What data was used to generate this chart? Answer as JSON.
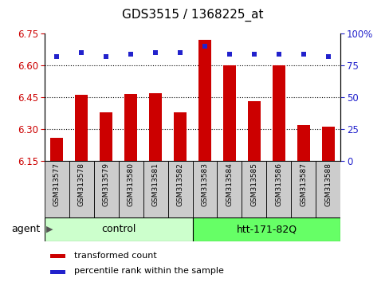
{
  "title": "GDS3515 / 1368225_at",
  "samples": [
    "GSM313577",
    "GSM313578",
    "GSM313579",
    "GSM313580",
    "GSM313581",
    "GSM313582",
    "GSM313583",
    "GSM313584",
    "GSM313585",
    "GSM313586",
    "GSM313587",
    "GSM313588"
  ],
  "transformed_counts": [
    6.26,
    6.46,
    6.38,
    6.465,
    6.47,
    6.38,
    6.72,
    6.6,
    6.43,
    6.6,
    6.32,
    6.31
  ],
  "percentile_ranks": [
    82,
    85,
    82,
    84,
    85,
    85,
    90,
    84,
    84,
    84,
    84,
    82
  ],
  "groups": [
    "control",
    "control",
    "control",
    "control",
    "control",
    "control",
    "htt-171-82Q",
    "htt-171-82Q",
    "htt-171-82Q",
    "htt-171-82Q",
    "htt-171-82Q",
    "htt-171-82Q"
  ],
  "ylim_left": [
    6.15,
    6.75
  ],
  "ylim_right": [
    0,
    100
  ],
  "yticks_left": [
    6.15,
    6.3,
    6.45,
    6.6,
    6.75
  ],
  "yticks_right": [
    0,
    25,
    50,
    75,
    100
  ],
  "gridlines": [
    6.3,
    6.45,
    6.6
  ],
  "bar_color": "#CC0000",
  "dot_color": "#2222CC",
  "bar_width": 0.5,
  "agent_label": "agent",
  "tick_color_left": "#CC0000",
  "tick_color_right": "#2222CC",
  "title_fontsize": 11,
  "tick_fontsize": 8.5,
  "sample_fontsize": 6.5,
  "group_fontsize": 9,
  "legend_fontsize": 8,
  "control_color_light": "#CCFFCC",
  "control_color_dark": "#00CC00",
  "htt_color_light": "#66FF66",
  "htt_color_dark": "#00CC00",
  "sample_box_color": "#CCCCCC"
}
